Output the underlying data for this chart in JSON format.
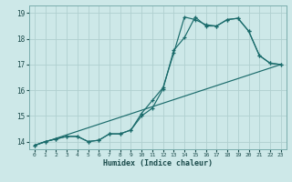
{
  "xlabel": "Humidex (Indice chaleur)",
  "ylabel": "",
  "background_color": "#cde8e8",
  "grid_color": "#b0d0d0",
  "line_color": "#1a6b6b",
  "xlim": [
    -0.5,
    23.5
  ],
  "ylim": [
    13.7,
    19.3
  ],
  "yticks": [
    14,
    15,
    16,
    17,
    18,
    19
  ],
  "xticks": [
    0,
    1,
    2,
    3,
    4,
    5,
    6,
    7,
    8,
    9,
    10,
    11,
    12,
    13,
    14,
    15,
    16,
    17,
    18,
    19,
    20,
    21,
    22,
    23
  ],
  "line1_x": [
    0,
    1,
    2,
    3,
    4,
    5,
    6,
    7,
    8,
    9,
    10,
    11,
    12,
    13,
    14,
    15,
    16,
    17,
    18,
    19,
    20,
    21,
    22,
    23
  ],
  "line1_y": [
    13.85,
    14.0,
    14.1,
    14.2,
    14.2,
    14.0,
    14.05,
    14.3,
    14.3,
    14.45,
    15.0,
    15.3,
    16.05,
    17.55,
    18.05,
    18.85,
    18.5,
    18.5,
    18.75,
    18.8,
    18.3,
    17.35,
    17.05,
    17.0
  ],
  "line2_x": [
    0,
    1,
    2,
    3,
    4,
    5,
    6,
    7,
    8,
    9,
    10,
    11,
    12,
    13,
    14,
    15,
    16,
    17,
    18,
    19,
    20,
    21,
    22,
    23
  ],
  "line2_y": [
    13.85,
    14.0,
    14.1,
    14.2,
    14.2,
    14.0,
    14.05,
    14.3,
    14.3,
    14.45,
    15.1,
    15.6,
    16.1,
    17.45,
    18.85,
    18.75,
    18.55,
    18.5,
    18.75,
    18.8,
    18.3,
    17.35,
    17.05,
    17.0
  ],
  "line3_x": [
    0,
    23
  ],
  "line3_y": [
    13.85,
    17.0
  ]
}
